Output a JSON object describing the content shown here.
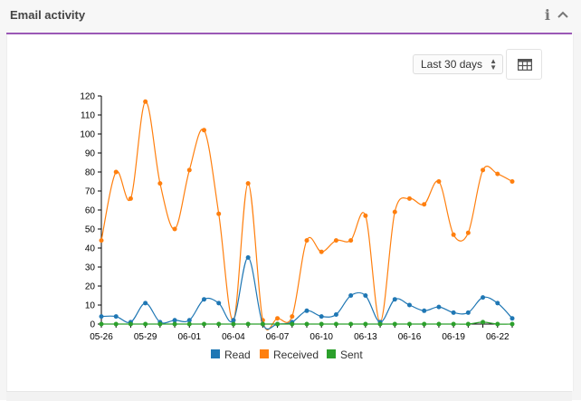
{
  "widget": {
    "title": "Email activity",
    "info_icon": "info-icon",
    "collapse_icon": "chevron-up-icon",
    "accent_color": "#9b59b6"
  },
  "controls": {
    "range_label": "Last 30 days",
    "range_icon": "select-arrows-icon",
    "table_icon": "table-icon"
  },
  "chart_data": {
    "type": "line",
    "title": "",
    "xlabel": "",
    "ylabel": "",
    "ylim": [
      0,
      120
    ],
    "yticks": [
      0,
      10,
      20,
      30,
      40,
      50,
      60,
      70,
      80,
      90,
      100,
      110,
      120
    ],
    "x": [
      "05-26",
      "05-27",
      "05-28",
      "05-29",
      "05-30",
      "05-31",
      "06-01",
      "06-02",
      "06-03",
      "06-04",
      "06-05",
      "06-06",
      "06-07",
      "06-08",
      "06-09",
      "06-10",
      "06-11",
      "06-12",
      "06-13",
      "06-14",
      "06-15",
      "06-16",
      "06-17",
      "06-18",
      "06-19",
      "06-20",
      "06-21",
      "06-22",
      "06-23"
    ],
    "xtick_labels": [
      "05-26",
      "05-29",
      "06-01",
      "06-04",
      "06-07",
      "06-10",
      "06-13",
      "06-16",
      "06-19",
      "06-22"
    ],
    "legend_position": "bottom",
    "grid": false,
    "series": [
      {
        "name": "Read",
        "color": "#1f77b4",
        "values": [
          4,
          4,
          1,
          11,
          1,
          2,
          2,
          13,
          11,
          2,
          35,
          0,
          0,
          1,
          7,
          4,
          5,
          15,
          15,
          1,
          13,
          10,
          7,
          9,
          6,
          6,
          14,
          11,
          3
        ]
      },
      {
        "name": "Received",
        "color": "#ff7f0e",
        "values": [
          44,
          80,
          66,
          117,
          74,
          50,
          81,
          102,
          58,
          2,
          74,
          2,
          3,
          4,
          44,
          38,
          44,
          44,
          57,
          1,
          59,
          66,
          63,
          75,
          47,
          48,
          81,
          79,
          75
        ]
      },
      {
        "name": "Sent",
        "color": "#2ca02c",
        "values": [
          0,
          0,
          0,
          0,
          0,
          0,
          0,
          0,
          0,
          0,
          0,
          0,
          0,
          0,
          0,
          0,
          0,
          0,
          0,
          0,
          0,
          0,
          0,
          0,
          0,
          0,
          1,
          0,
          0
        ]
      }
    ]
  }
}
